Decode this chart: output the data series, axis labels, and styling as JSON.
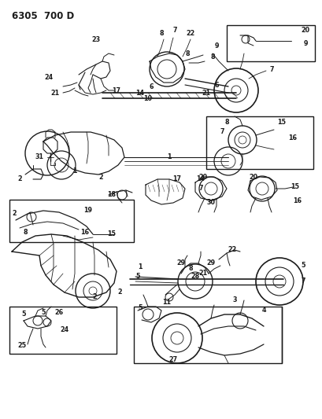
{
  "title": "6305  700 D",
  "bg_color": "#ffffff",
  "fig_width": 4.1,
  "fig_height": 5.33,
  "dpi": 100,
  "image_b64": ""
}
